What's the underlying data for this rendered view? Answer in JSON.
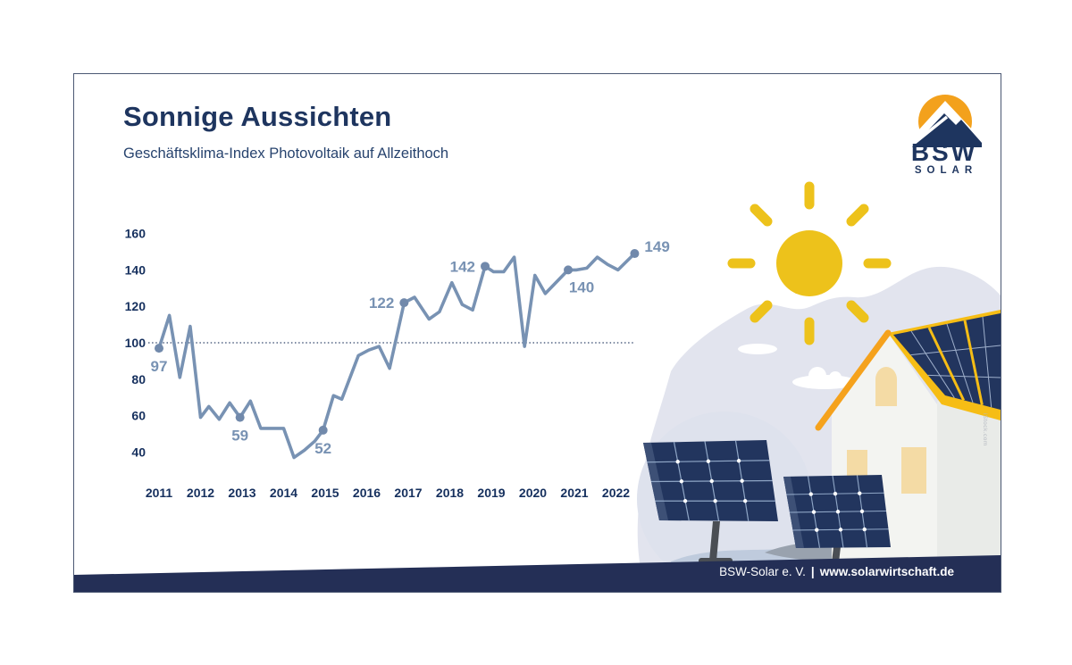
{
  "header": {
    "title": "Sonnige Aussichten",
    "subtitle": "Geschäftsklima-Index Photovoltaik auf Allzeithoch"
  },
  "logo": {
    "line1": "BSW",
    "line2": "SOLAR"
  },
  "chart_data": {
    "type": "line",
    "title": "Geschäftsklima-Index Photovoltaik",
    "x_ticks": [
      "2011",
      "2012",
      "2013",
      "2014",
      "2015",
      "2016",
      "2017",
      "2018",
      "2019",
      "2020",
      "2021",
      "2022"
    ],
    "y_ticks": [
      160,
      140,
      120,
      100,
      80,
      60,
      40
    ],
    "ylim": [
      30,
      170
    ],
    "baseline_value": 100,
    "grid": "baseline-dotted-only",
    "series": [
      {
        "name": "Geschäftsklima-Index",
        "points": [
          [
            2011.0,
            97
          ],
          [
            2011.25,
            115
          ],
          [
            2011.5,
            81
          ],
          [
            2011.75,
            109
          ],
          [
            2012.0,
            59
          ],
          [
            2012.2,
            65
          ],
          [
            2012.45,
            58
          ],
          [
            2012.7,
            67
          ],
          [
            2012.95,
            59
          ],
          [
            2013.2,
            68
          ],
          [
            2013.45,
            53
          ],
          [
            2013.7,
            53
          ],
          [
            2014.0,
            53
          ],
          [
            2014.25,
            37
          ],
          [
            2014.5,
            41
          ],
          [
            2014.75,
            46
          ],
          [
            2014.95,
            52
          ],
          [
            2015.2,
            71
          ],
          [
            2015.4,
            69
          ],
          [
            2015.8,
            93
          ],
          [
            2016.05,
            96
          ],
          [
            2016.3,
            98
          ],
          [
            2016.55,
            86
          ],
          [
            2016.9,
            122
          ],
          [
            2017.15,
            125
          ],
          [
            2017.5,
            113
          ],
          [
            2017.75,
            117
          ],
          [
            2018.05,
            133
          ],
          [
            2018.3,
            121
          ],
          [
            2018.55,
            118
          ],
          [
            2018.85,
            142
          ],
          [
            2019.05,
            139
          ],
          [
            2019.3,
            139
          ],
          [
            2019.55,
            147
          ],
          [
            2019.8,
            98
          ],
          [
            2020.05,
            137
          ],
          [
            2020.3,
            127
          ],
          [
            2020.85,
            140
          ],
          [
            2021.05,
            140
          ],
          [
            2021.3,
            141
          ],
          [
            2021.55,
            147
          ],
          [
            2021.8,
            143
          ],
          [
            2022.05,
            140
          ],
          [
            2022.45,
            149
          ]
        ]
      }
    ],
    "annotations": [
      {
        "x": 2011.0,
        "v": 97,
        "label": "97",
        "pos": "below"
      },
      {
        "x": 2012.95,
        "v": 59,
        "label": "59",
        "pos": "below"
      },
      {
        "x": 2014.95,
        "v": 52,
        "label": "52",
        "pos": "below"
      },
      {
        "x": 2016.9,
        "v": 122,
        "label": "122",
        "pos": "left"
      },
      {
        "x": 2018.85,
        "v": 142,
        "label": "142",
        "pos": "left"
      },
      {
        "x": 2020.85,
        "v": 140,
        "label": "140",
        "pos": "below-right"
      },
      {
        "x": 2022.45,
        "v": 149,
        "label": "149",
        "pos": "right"
      }
    ]
  },
  "footer": {
    "org": "BSW-Solar e. V.",
    "separator": "|",
    "url": "www.solarwirtschaft.de"
  },
  "credit": "iStock.com",
  "colors": {
    "navy_text": "#1e355f",
    "tick_navy": "#16305e",
    "line_blue": "#7892b3",
    "dot_blue": "#7189ab",
    "baseline_navy": "#31456b",
    "sun_yellow": "#edc21b",
    "roof_orange": "#f5a21d",
    "roof_yellow": "#f6bd15",
    "panel_navy": "#22355e",
    "footer_navy": "#242f56",
    "cloud_gray": "#e2e4ee",
    "window_beige": "#f4dba5"
  }
}
